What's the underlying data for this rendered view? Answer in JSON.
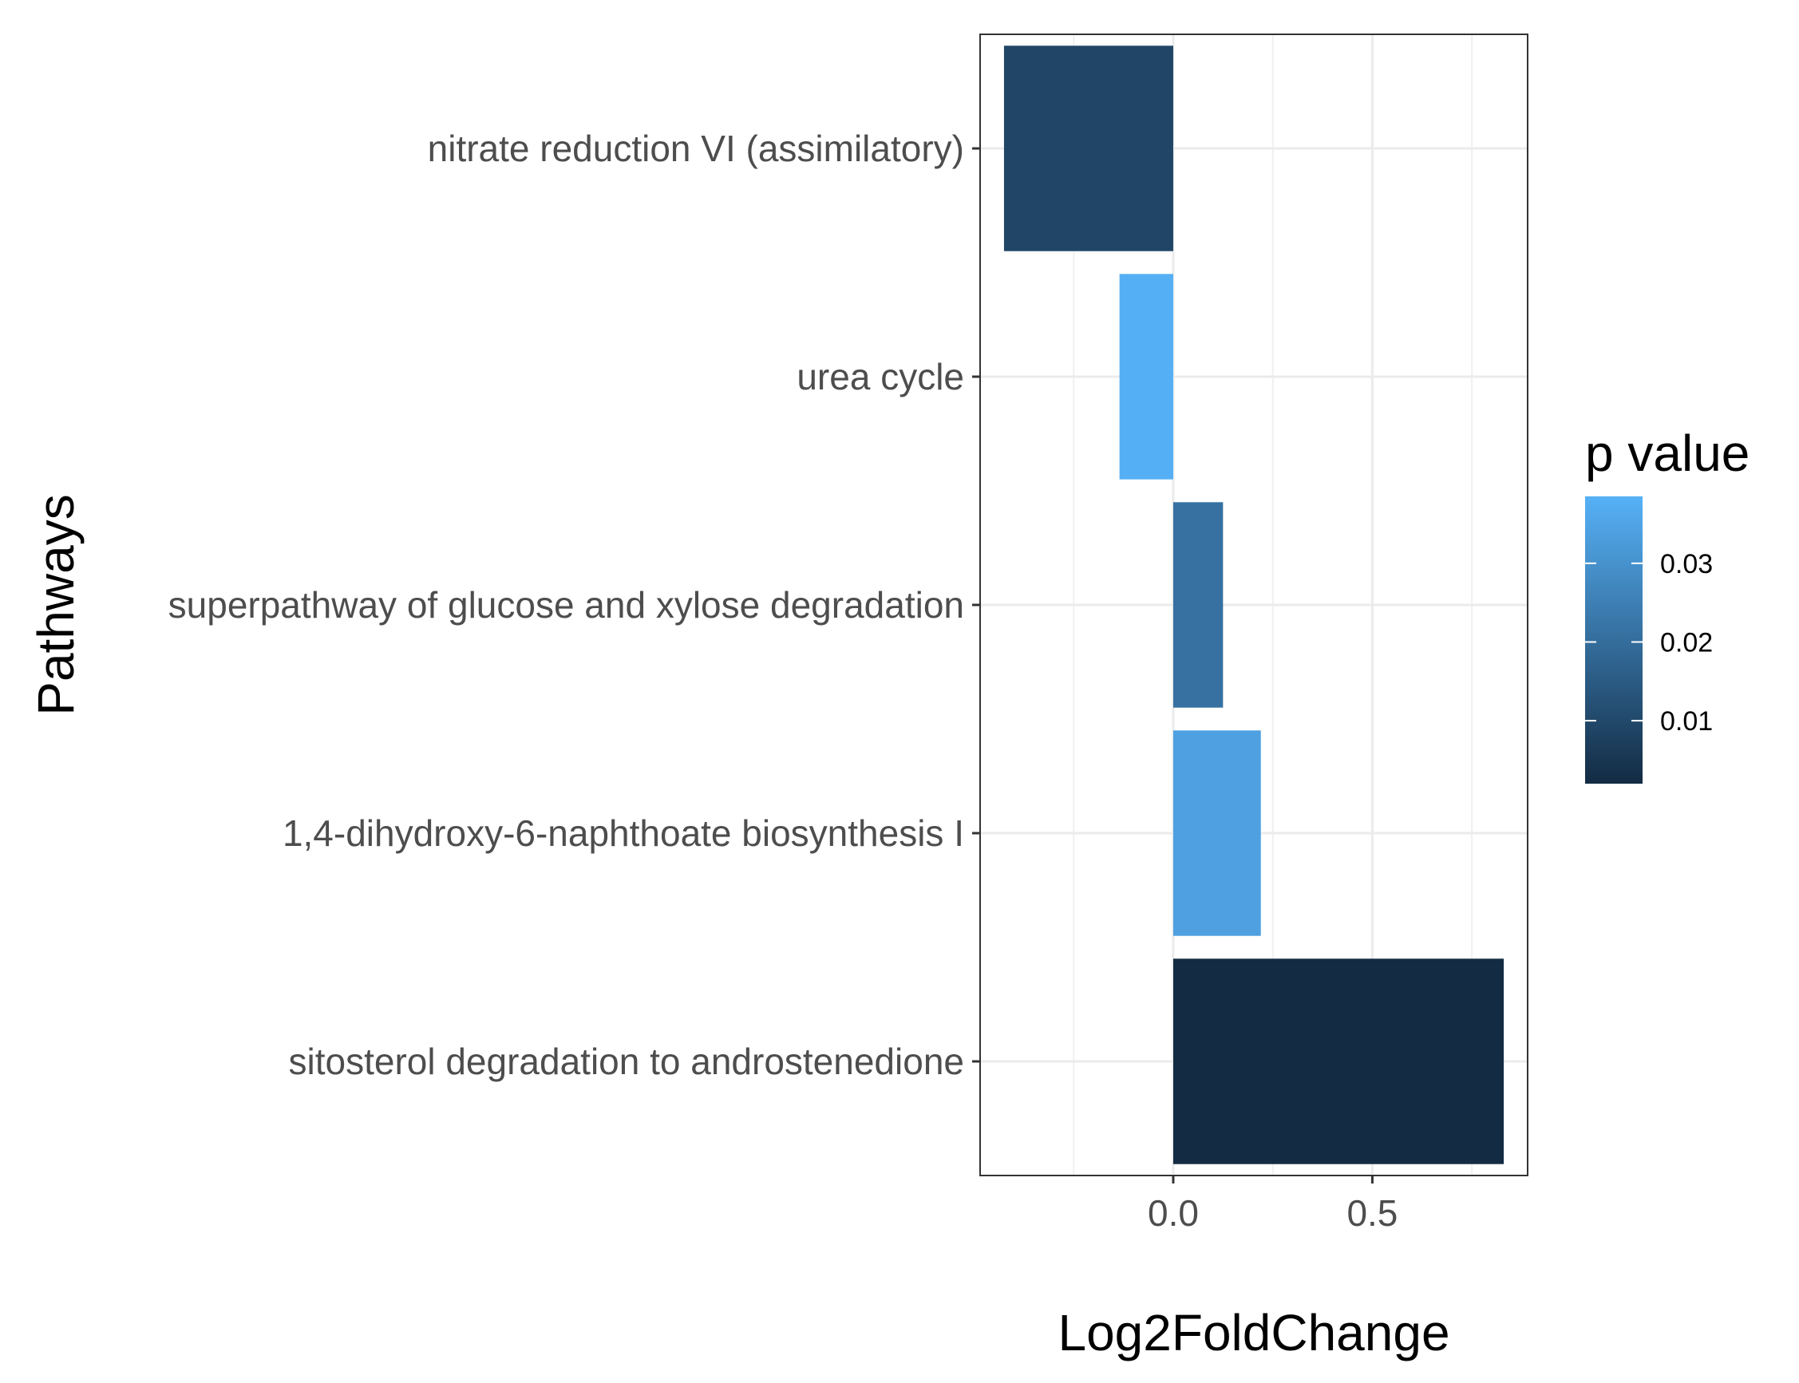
{
  "chart_data": {
    "type": "bar",
    "orientation": "horizontal",
    "xlabel": "Log2FoldChange",
    "ylabel": "Pathways",
    "xlim": [
      -0.485,
      0.89
    ],
    "x_ticks": [
      {
        "value": 0.0,
        "label": "0.0"
      },
      {
        "value": 0.5,
        "label": "0.5"
      }
    ],
    "x_minor_gridlines": [
      -0.25,
      0.25,
      0.75
    ],
    "grid": true,
    "categories": [
      "nitrate reduction VI (assimilatory)",
      "urea cycle",
      "superpathway of glucose and xylose degradation",
      "1,4-dihydroxy-6-naphthoate biosynthesis I",
      "sitosterol degradation to androstenedione"
    ],
    "values": [
      -0.425,
      -0.135,
      0.125,
      0.22,
      0.83
    ],
    "p_values": [
      0.009,
      0.038,
      0.021,
      0.034,
      0.002
    ],
    "legend": {
      "title": "p value",
      "placement": "right",
      "type": "colorbar",
      "range": [
        0.002,
        0.0385
      ],
      "ticks": [
        {
          "value": 0.01,
          "label": "0.01"
        },
        {
          "value": 0.02,
          "label": "0.02"
        },
        {
          "value": 0.03,
          "label": "0.03"
        }
      ],
      "color_low": "#132B43",
      "color_high": "#56B1F7"
    }
  }
}
